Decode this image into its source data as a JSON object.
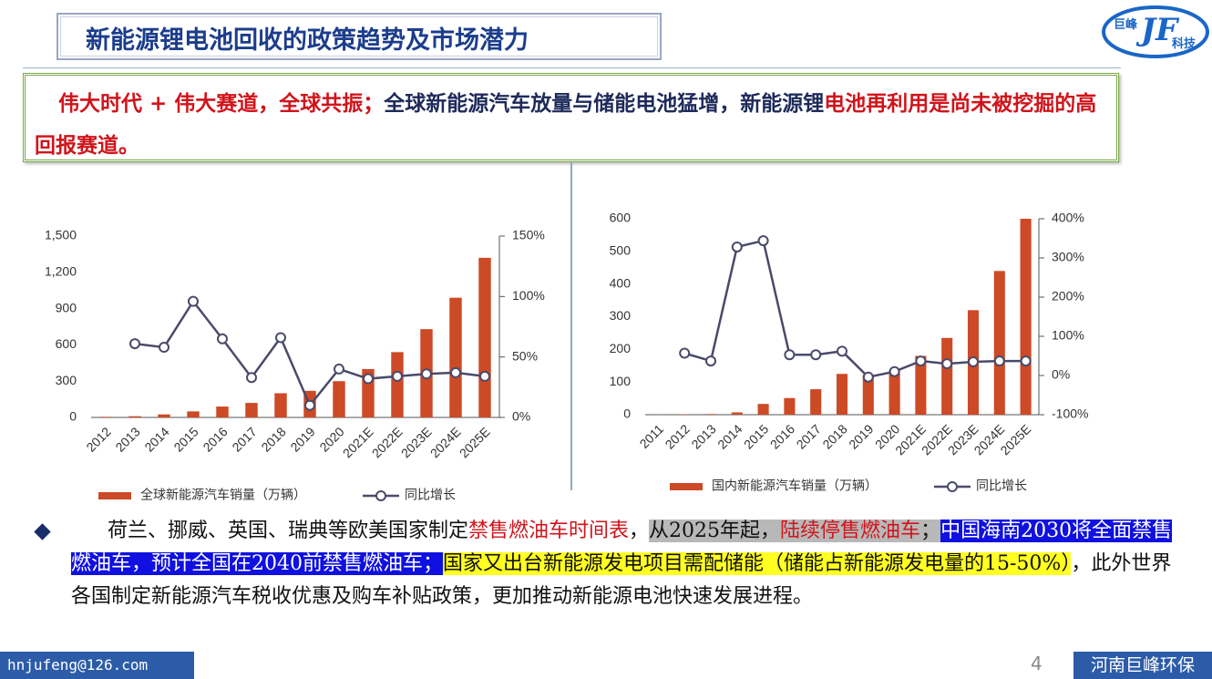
{
  "header": {
    "title": "新能源锂电池回收的政策趋势及市场潜力",
    "logo_top": "巨峰",
    "logo_mark": "JF",
    "logo_bottom": "科技"
  },
  "callout": {
    "segments": [
      "伟大时代 + 伟大赛道，全球共振；",
      "全球新能源汽车放量与储能电池猛增，新能源锂",
      "电池再利用是尚未被挖掘的高回报赛道。"
    ]
  },
  "chart_data": [
    {
      "type": "bar",
      "categories": [
        "2012",
        "2013",
        "2014",
        "2015",
        "2016",
        "2017",
        "2018",
        "2019",
        "2020",
        "2021E",
        "2022E",
        "2023E",
        "2024E",
        "2025E"
      ],
      "series": [
        {
          "name": "全球新能源汽车销量（万辆）",
          "color": "#cc4a26",
          "values": [
            5,
            10,
            25,
            50,
            90,
            120,
            200,
            220,
            300,
            400,
            540,
            730,
            990,
            1320
          ]
        },
        {
          "name": "同比增长",
          "color": "#4a4a6a",
          "axis": "y2",
          "values": [
            null,
            61,
            58,
            96,
            65,
            33,
            66,
            10,
            40,
            32,
            34,
            36,
            37,
            34
          ]
        }
      ],
      "ylim": [
        0,
        1500
      ],
      "yticks": [
        0,
        300,
        600,
        900,
        {
          "value": 1200,
          "label": "1,200"
        },
        {
          "value": 1500,
          "label": "1,500"
        }
      ],
      "y2lim": [
        0,
        150
      ],
      "y2ticks": [
        {
          "value": 0,
          "label": "0%"
        },
        {
          "value": 50,
          "label": "50%"
        },
        {
          "value": 100,
          "label": "100%"
        },
        {
          "value": 150,
          "label": "150%"
        }
      ]
    },
    {
      "type": "bar",
      "categories": [
        "2011",
        "2012",
        "2013",
        "2014",
        "2015",
        "2016",
        "2017",
        "2018",
        "2019",
        "2020",
        "2021E",
        "2022E",
        "2023E",
        "2024E",
        "2025E"
      ],
      "series": [
        {
          "name": "国内新能源汽车销量（万辆）",
          "color": "#cc4a26",
          "values": [
            0.5,
            1,
            2,
            7,
            33,
            51,
            78,
            125,
            121,
            137,
            180,
            235,
            320,
            440,
            600
          ]
        },
        {
          "name": "同比增长",
          "color": "#4a4a6a",
          "axis": "y2",
          "values": [
            null,
            57,
            37,
            328,
            344,
            53,
            53,
            62,
            -4,
            10,
            37,
            30,
            35,
            37,
            37
          ]
        }
      ],
      "ylim": [
        0,
        600
      ],
      "yticks": [
        0,
        100,
        200,
        300,
        400,
        500,
        600
      ],
      "y2lim": [
        -100,
        400
      ],
      "y2ticks": [
        {
          "value": -100,
          "label": "-100%"
        },
        {
          "value": 0,
          "label": "0%"
        },
        {
          "value": 100,
          "label": "100%"
        },
        {
          "value": 200,
          "label": "200%"
        },
        {
          "value": 300,
          "label": "300%"
        },
        {
          "value": 400,
          "label": "400%"
        }
      ]
    }
  ],
  "bullet": {
    "segments": [
      "荷兰、挪威、英国、瑞典等欧美国家制定",
      "禁售燃油车时间表",
      "，",
      "从2025年起，",
      "陆续停售燃油车",
      "；",
      "中国海南2030将全面禁售燃油车，预计全国在2040前禁售燃油车；",
      "国家又出台新能源发电项目需配储能（储能占新能源发电量的15-50%）",
      "，此外世界各国制定新能源汽车税收优惠及购车补贴政策，更加推动新能源电池快速发展进程。"
    ]
  },
  "footer": {
    "email": "hnjufeng@126.com",
    "page": "4",
    "company": "河南巨峰环保"
  }
}
